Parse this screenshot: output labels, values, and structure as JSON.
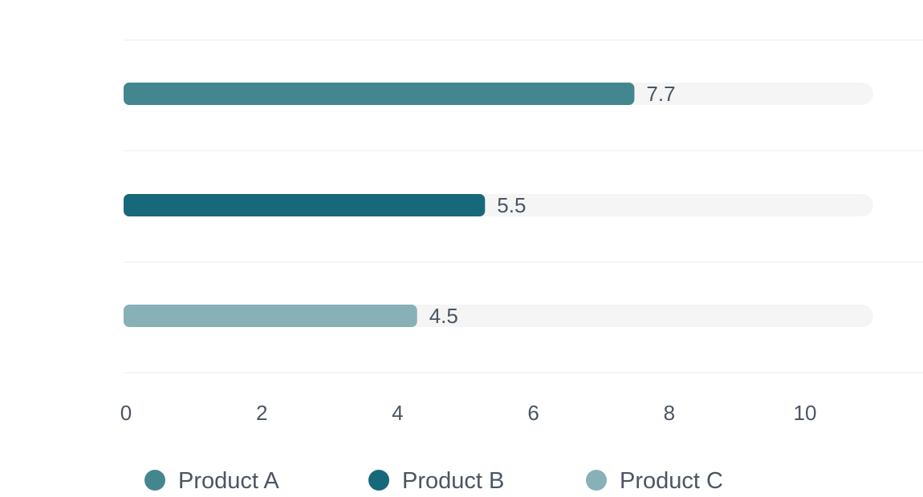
{
  "chart_data": {
    "type": "bar",
    "orientation": "horizontal",
    "categories": [
      "Product A",
      "Product B",
      "Product C"
    ],
    "values": [
      7.7,
      5.5,
      4.5
    ],
    "colors": [
      "#448690",
      "#17687a",
      "#88b0b7"
    ],
    "title": "",
    "xlabel": "",
    "ylabel": "",
    "xlim": [
      0,
      11
    ],
    "x_ticks": [
      0,
      2,
      4,
      6,
      8,
      10
    ],
    "grid": "horizontal",
    "legend_position": "bottom",
    "value_labels": [
      "7.7",
      "5.5",
      "4.5"
    ]
  }
}
